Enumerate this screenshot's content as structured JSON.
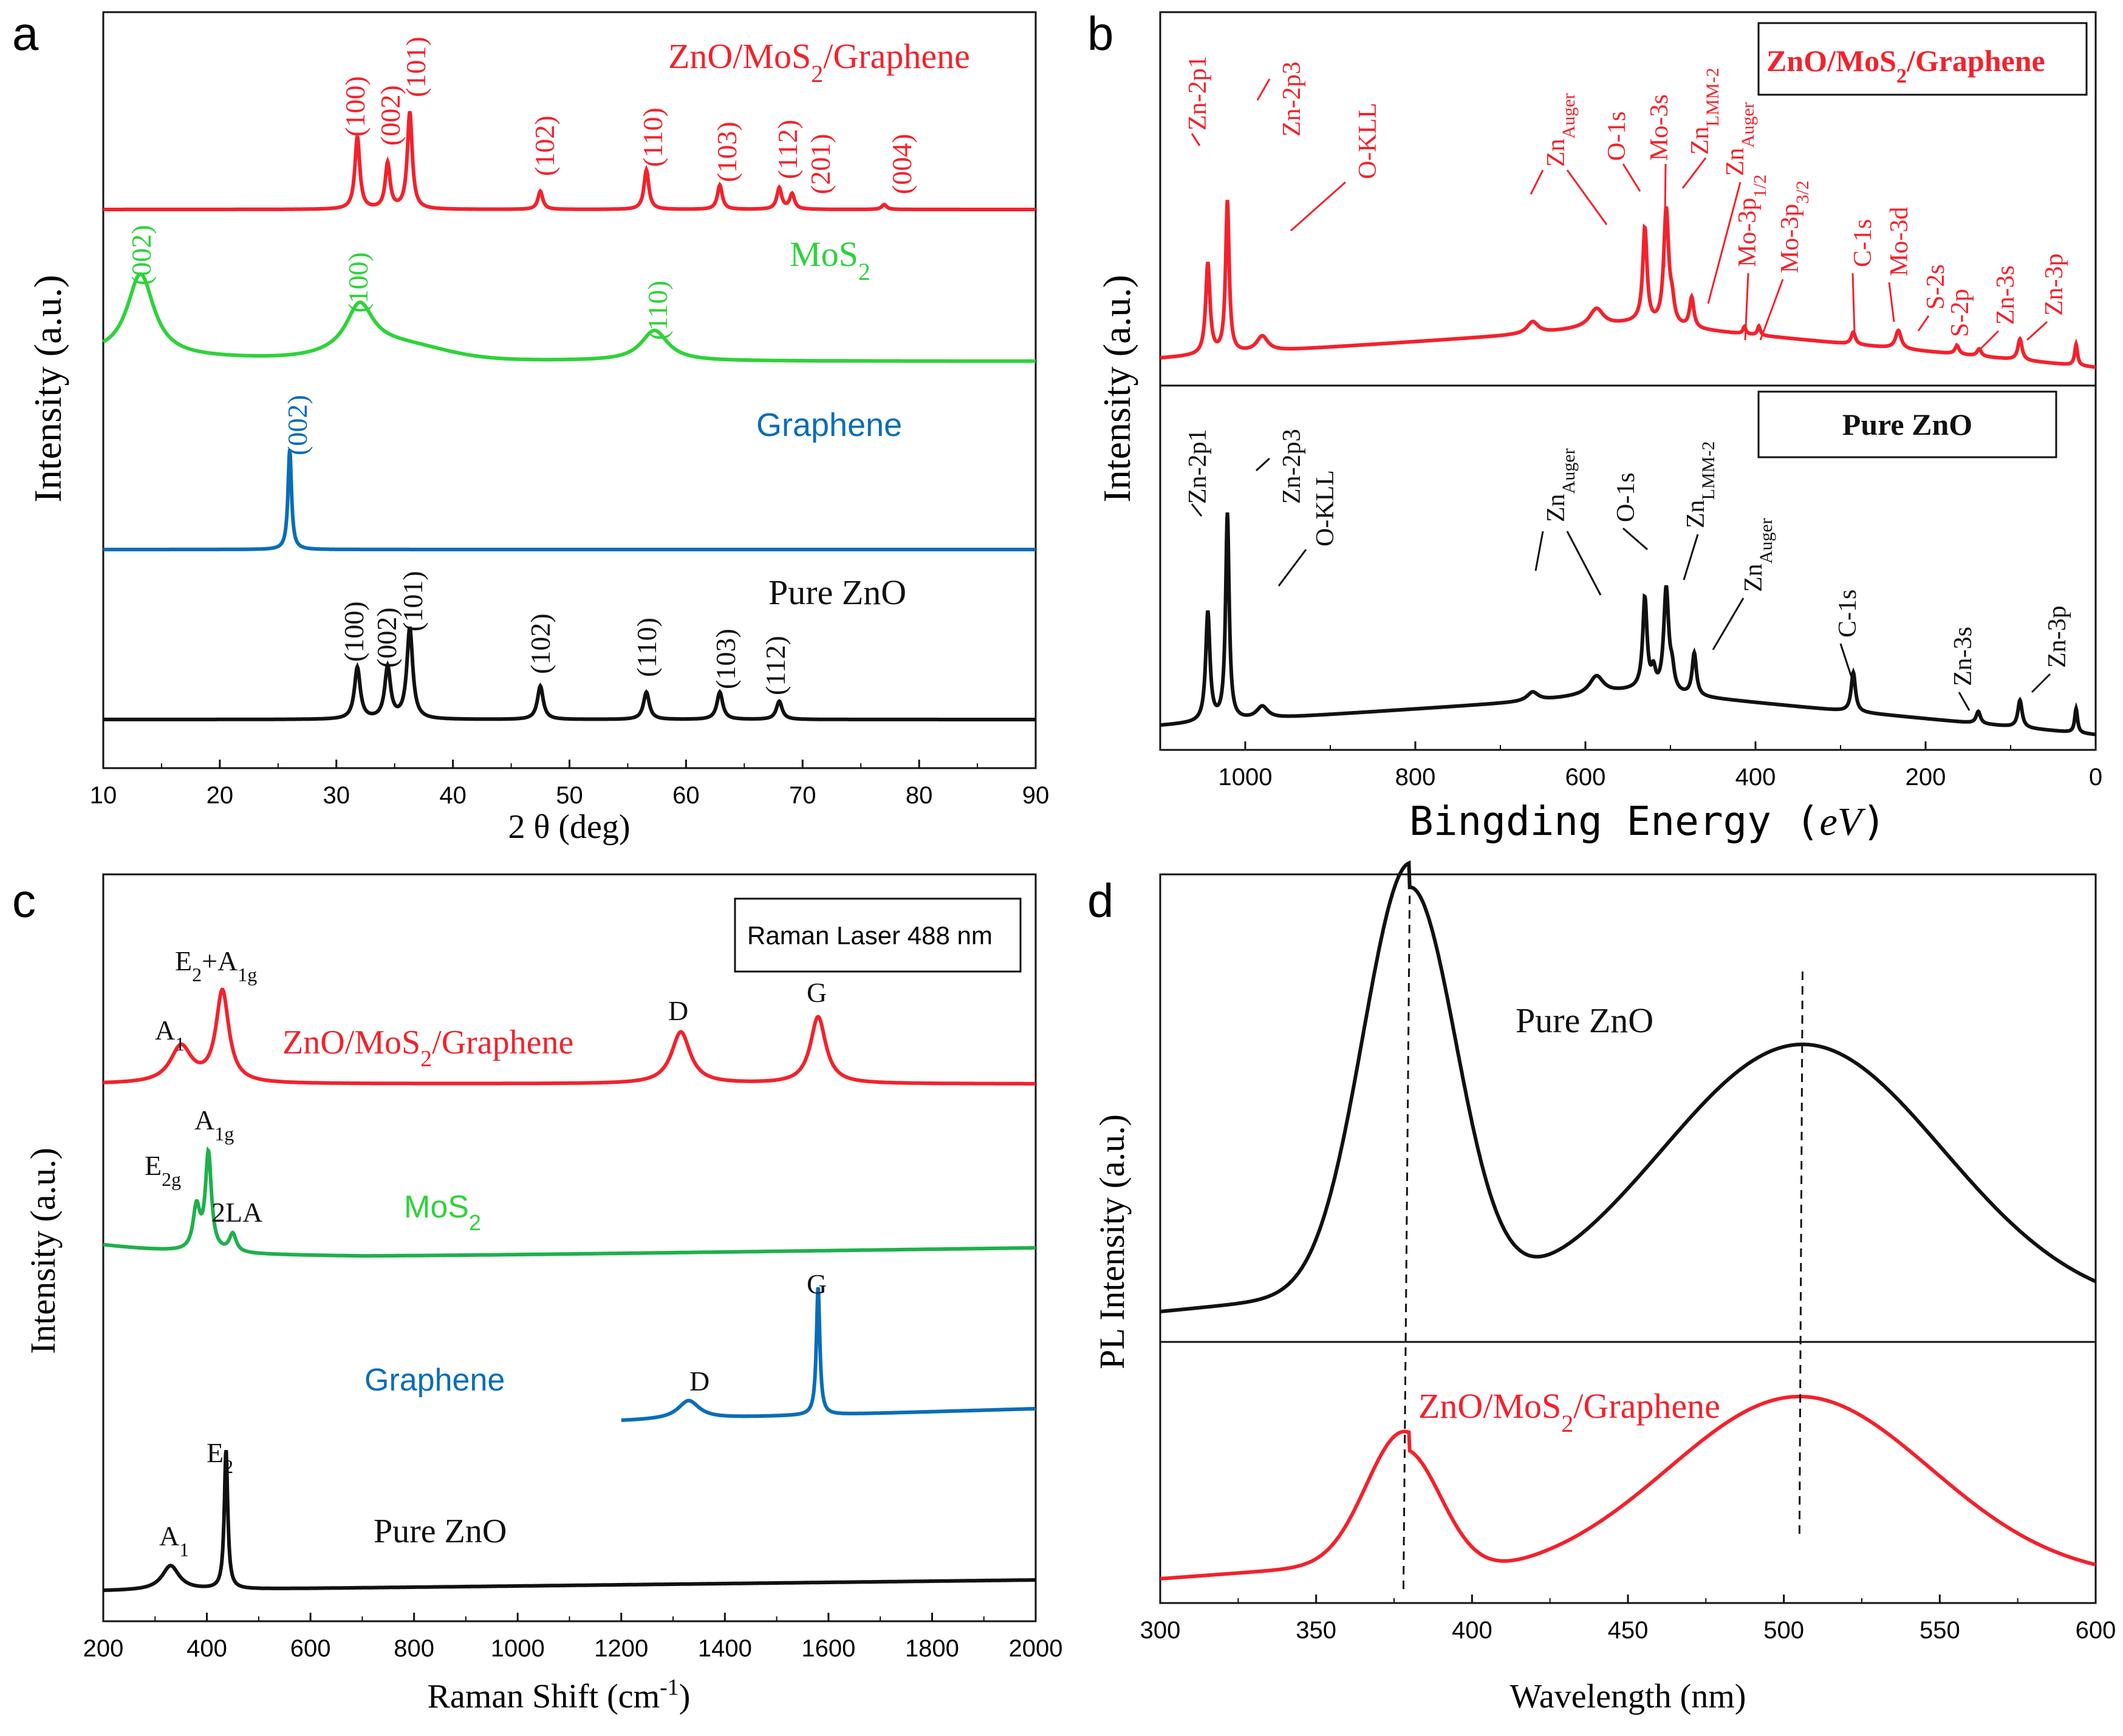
{
  "colors": {
    "red": "#f2222c",
    "green": "#2fd23a",
    "green_dark": "#1fb04c",
    "blue": "#0a6db8",
    "black": "#111111"
  },
  "chart_data": [
    {
      "panel": "a",
      "type": "line",
      "xlabel": "2 θ (deg)",
      "ylabel": "Intensity (a.u.)",
      "xlim": [
        10,
        90
      ],
      "xticks": [
        10,
        20,
        30,
        40,
        50,
        60,
        70,
        80,
        90
      ],
      "series": [
        {
          "name": "ZnO/MoS₂/Graphene",
          "color_key": "red",
          "peaks": [
            [
              31.8,
              "(100)"
            ],
            [
              34.4,
              "(002)"
            ],
            [
              36.3,
              "(101)"
            ],
            [
              47.5,
              "(102)"
            ],
            [
              56.6,
              "(110)"
            ],
            [
              62.9,
              "(103)"
            ],
            [
              68.0,
              "(112)"
            ],
            [
              69.1,
              "(201)"
            ],
            [
              77.0,
              "(004)"
            ]
          ]
        },
        {
          "name": "MoS₂",
          "color_key": "green",
          "peaks": [
            [
              13.2,
              "(002)"
            ],
            [
              32.0,
              "(100)"
            ],
            [
              57.3,
              "(110)"
            ]
          ]
        },
        {
          "name": "Graphene",
          "color_key": "blue",
          "peaks": [
            [
              26.0,
              "(002)"
            ]
          ]
        },
        {
          "name": "Pure ZnO",
          "color_key": "black",
          "peaks": [
            [
              31.8,
              "(100)"
            ],
            [
              34.4,
              "(002)"
            ],
            [
              36.3,
              "(101)"
            ],
            [
              47.5,
              "(102)"
            ],
            [
              56.6,
              "(110)"
            ],
            [
              62.9,
              "(103)"
            ],
            [
              68.0,
              "(112)"
            ]
          ]
        }
      ]
    },
    {
      "panel": "b",
      "type": "line",
      "xlabel": "Bingding Energy (eV)",
      "ylabel": "Intensity (a.u.)",
      "xlim": [
        1100,
        0
      ],
      "xticks": [
        1000,
        800,
        600,
        400,
        200,
        0
      ],
      "series": [
        {
          "name": "ZnO/MoS₂/Graphene",
          "color_key": "red",
          "peaks": [
            "Zn-2p1",
            "Zn-2p3",
            "O-KLL",
            "Zn_Auger",
            "O-1s",
            "Mo-3s",
            "Zn_LMM-2",
            "Zn_Auger",
            "Mo-3p1/2",
            "Mo-3p3/2",
            "C-1s",
            "Mo-3d",
            "S-2s",
            "S-2p",
            "Zn-3s",
            "Zn-3p"
          ]
        },
        {
          "name": "Pure ZnO",
          "color_key": "black",
          "peaks": [
            "Zn-2p1",
            "Zn-2p3",
            "O-KLL",
            "Zn_Auger",
            "O-1s",
            "Zn_LMM-2",
            "Zn_Auger",
            "C-1s",
            "Zn-3s",
            "Zn-3p"
          ]
        }
      ]
    },
    {
      "panel": "c",
      "type": "line",
      "xlabel": "Raman Shift (cm⁻¹)",
      "ylabel": "Intensity (a.u.)",
      "xlim": [
        200,
        2000
      ],
      "xticks": [
        200,
        400,
        600,
        800,
        1000,
        1200,
        1400,
        1600,
        1800,
        2000
      ],
      "legend": "Raman Laser 488 nm",
      "series": [
        {
          "name": "ZnO/MoS₂/Graphene",
          "color_key": "red",
          "peaks": [
            [
              350,
              "A1"
            ],
            [
              430,
              "E2+A1g"
            ],
            [
              1315,
              "D"
            ],
            [
              1580,
              "G"
            ]
          ]
        },
        {
          "name": "MoS₂",
          "color_key": "green_dark",
          "peaks": [
            [
              380,
              "E2g"
            ],
            [
              403,
              "A1g"
            ],
            [
              450,
              "2LA"
            ]
          ]
        },
        {
          "name": "Graphene",
          "color_key": "blue",
          "peaks": [
            [
              1330,
              "D"
            ],
            [
              1580,
              "G"
            ]
          ]
        },
        {
          "name": "Pure ZnO",
          "color_key": "black",
          "peaks": [
            [
              330,
              "A1"
            ],
            [
              437,
              "E2"
            ]
          ]
        }
      ]
    },
    {
      "panel": "d",
      "type": "line",
      "xlabel": "Wavelength (nm)",
      "ylabel": "PL Intensity (a.u.)",
      "xlim": [
        300,
        600
      ],
      "xticks": [
        300,
        350,
        400,
        450,
        500,
        550,
        600
      ],
      "series": [
        {
          "name": "Pure ZnO",
          "color_key": "black",
          "peaks": [
            380,
            506
          ]
        },
        {
          "name": "ZnO/MoS₂/Graphene",
          "color_key": "red",
          "peaks": [
            378,
            505
          ]
        }
      ]
    }
  ],
  "panels": {
    "a": {
      "letter": "a",
      "xlabel": "2 θ (deg)",
      "ylabel": "Intensity (a.u.)",
      "ticks": [
        "10",
        "20",
        "30",
        "40",
        "50",
        "60",
        "70",
        "80",
        "90"
      ],
      "name_red": "ZnO/MoS",
      "name_red_tail": "/Graphene",
      "sub2": "2",
      "name_green": "MoS",
      "name_blue": "Graphene",
      "name_black": "Pure ZnO",
      "hkl": {
        "h100": "(100)",
        "h002": "(002)",
        "h101": "(101)",
        "h102": "(102)",
        "h110": "(110)",
        "h103": "(103)",
        "h112": "(112)",
        "h201": "(201)",
        "h004": "(004)"
      }
    },
    "b": {
      "letter": "b",
      "xlabel": "Bingding Energy ",
      "xunit": "eV",
      "ylabel": "Intensity (a.u.)",
      "ticks": [
        "1000",
        "800",
        "600",
        "400",
        "200",
        "0"
      ],
      "box_red": "ZnO/MoS",
      "box_red_tail": "/Graphene",
      "sub2": "2",
      "box_black": "Pure ZnO",
      "labels": {
        "zn2p1": "Zn-2p1",
        "zn2p3": "Zn-2p3",
        "okll": "O-KLL",
        "zn": "Zn",
        "auger": "Auger",
        "o1s": "O-1s",
        "mo3s": "Mo-3s",
        "lmm": "LMM-2",
        "mo3p": "Mo-3p",
        "s12": "1/2",
        "s32": "3/2",
        "c1s": "C-1s",
        "mo3d": "Mo-3d",
        "s2s": "S-2s",
        "s2p": "S-2p",
        "zn3s": "Zn-3s",
        "zn3p": "Zn-3p"
      }
    },
    "c": {
      "letter": "c",
      "xlabel": "Raman Shift (cm",
      "xlabel_sup": "-1",
      "xlabel_end": ")",
      "ylabel": "Intensity (a.u.)",
      "ticks": [
        "200",
        "400",
        "600",
        "800",
        "1000",
        "1200",
        "1400",
        "1600",
        "1800",
        "2000"
      ],
      "legend": "Raman Laser 488 nm",
      "name_red": "ZnO/MoS",
      "name_red_tail": "/Graphene",
      "sub2": "2",
      "name_green": "MoS",
      "name_blue": "Graphene",
      "name_black": "Pure ZnO",
      "labels": {
        "A": "A",
        "one": "1",
        "E": "E",
        "two": "2",
        "oneg": "1g",
        "twog": "2g",
        "plusA": "+A",
        "la": "2LA",
        "D": "D",
        "G": "G"
      }
    },
    "d": {
      "letter": "d",
      "xlabel": "Wavelength (nm)",
      "ylabel": "PL Intensity (a.u.)",
      "ticks": [
        "300",
        "350",
        "400",
        "450",
        "500",
        "550",
        "600"
      ],
      "name_black": "Pure ZnO",
      "name_red": "ZnO/MoS",
      "name_red_tail": "/Graphene",
      "sub2": "2"
    }
  }
}
